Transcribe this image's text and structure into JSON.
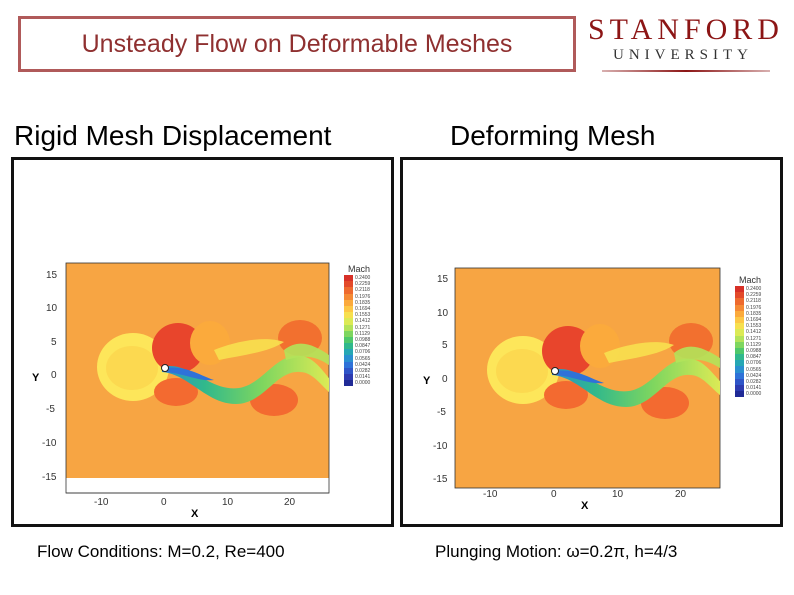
{
  "header": {
    "title": "Unsteady Flow on Deformable Meshes",
    "logo": {
      "main": "STANFORD",
      "sub": "UNIVERSITY"
    }
  },
  "panels": [
    {
      "title": "Rigid Mesh Displacement",
      "caption": "Flow Conditions: M=0.2, Re=400",
      "plot": {
        "xlabel": "X",
        "ylabel": "Y",
        "xticks": [
          "-10",
          "0",
          "10",
          "20"
        ],
        "yticks": [
          "15",
          "10",
          "5",
          "0",
          "-5",
          "-10",
          "-15"
        ],
        "legend_title": "Mach",
        "legend_values": [
          "0.2400",
          "0.2259",
          "0.2118",
          "0.1976",
          "0.1835",
          "0.1694",
          "0.1553",
          "0.1412",
          "0.1271",
          "0.1129",
          "0.0988",
          "0.0847",
          "0.0706",
          "0.0565",
          "0.0424",
          "0.0282",
          "0.0141",
          "0.0000"
        ]
      }
    },
    {
      "title": "Deforming Mesh",
      "caption": "Plunging Motion: ω=0.2π, h=4/3",
      "plot": {
        "xlabel": "X",
        "ylabel": "Y",
        "xticks": [
          "-10",
          "0",
          "10",
          "20"
        ],
        "yticks": [
          "15",
          "10",
          "5",
          "0",
          "-5",
          "-10",
          "-15"
        ],
        "legend_title": "Mach",
        "legend_values": [
          "0.2400",
          "0.2259",
          "0.2118",
          "0.1976",
          "0.1835",
          "0.1694",
          "0.1553",
          "0.1412",
          "0.1271",
          "0.1129",
          "0.0988",
          "0.0847",
          "0.0706",
          "0.0565",
          "0.0424",
          "0.0282",
          "0.0141",
          "0.0000"
        ]
      }
    }
  ],
  "colors": {
    "title_border": "#b05a5a",
    "title_text": "#8f3030",
    "stanford_red": "#8c1515",
    "legend": [
      "#d73027",
      "#e34a2a",
      "#ee6a2e",
      "#f58a35",
      "#fbaa3c",
      "#fdc745",
      "#f7e04f",
      "#dcea55",
      "#b3e35a",
      "#7ed65f",
      "#4fc86a",
      "#30b88c",
      "#26a7b4",
      "#2a8fd0",
      "#2f72d8",
      "#2f55c8",
      "#2d3bb0",
      "#202a96"
    ],
    "field_bg": "#f7a543"
  }
}
